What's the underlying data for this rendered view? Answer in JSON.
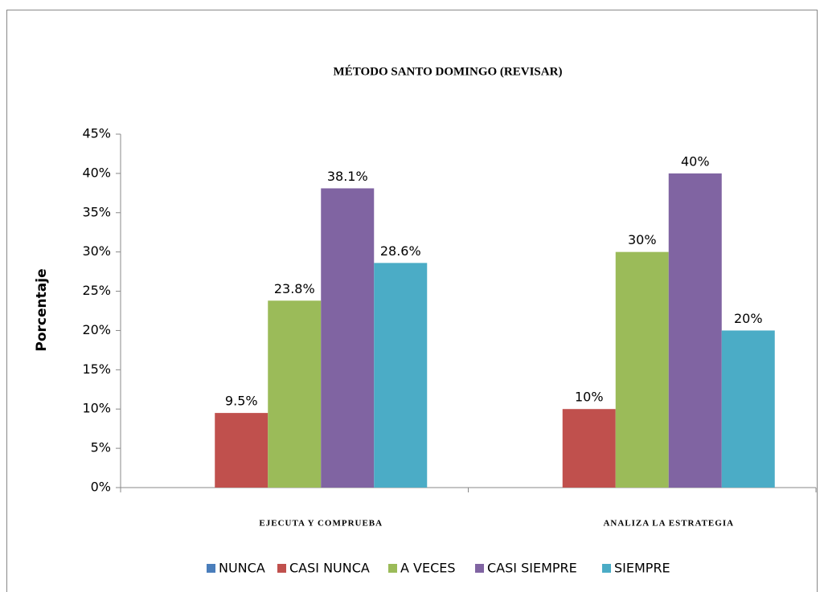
{
  "chart_data": {
    "type": "bar",
    "title": "MÉTODO SANTO DOMINGO (REVISAR)",
    "y_label": "Porcentaje",
    "categories": [
      "EJECUTA  Y  COMPRUEBA",
      "ANALIZA  LA  ESTRATEGIA"
    ],
    "series": [
      {
        "name": "NUNCA",
        "color": "#4a7ebb",
        "values": [
          0,
          0
        ]
      },
      {
        "name": "CASI NUNCA",
        "color": "#c0504d",
        "values": [
          9.5,
          10
        ],
        "value_labels": [
          "9.5%",
          "10%"
        ]
      },
      {
        "name": "A VECES",
        "color": "#9bbb59",
        "values": [
          23.8,
          30
        ],
        "value_labels": [
          "23.8%",
          "30%"
        ]
      },
      {
        "name": "CASI SIEMPRE",
        "color": "#8064a2",
        "values": [
          38.1,
          40
        ],
        "value_labels": [
          "38.1%",
          "40%"
        ]
      },
      {
        "name": "SIEMPRE",
        "color": "#4bacc6",
        "values": [
          28.6,
          20
        ],
        "value_labels": [
          "28.6%",
          "20%"
        ]
      }
    ],
    "ylim": [
      0,
      45
    ],
    "yticks": [
      {
        "value": 0,
        "label": "0%"
      },
      {
        "value": 5,
        "label": "5%"
      },
      {
        "value": 10,
        "label": "10%"
      },
      {
        "value": 15,
        "label": "15%"
      },
      {
        "value": 20,
        "label": "20%"
      },
      {
        "value": 25,
        "label": "25%"
      },
      {
        "value": 30,
        "label": "30%"
      },
      {
        "value": 35,
        "label": "35%"
      },
      {
        "value": 40,
        "label": "40%"
      },
      {
        "value": 45,
        "label": "45%"
      }
    ],
    "grid": false,
    "legend": "bottom"
  }
}
